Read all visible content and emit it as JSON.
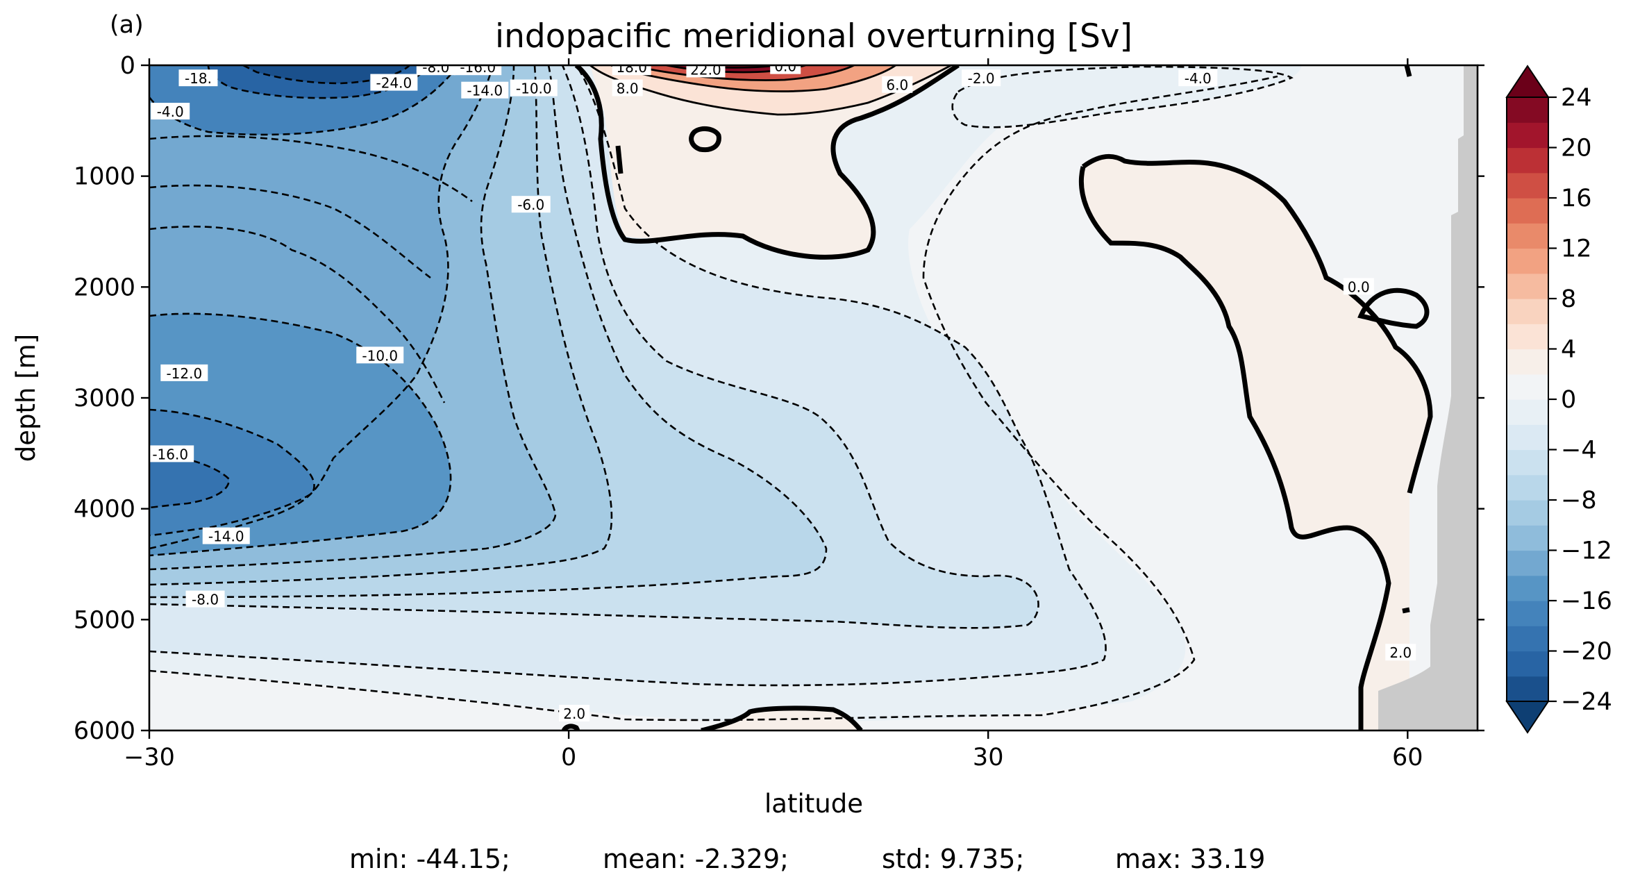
{
  "panel_label": "(a)",
  "chart_data": {
    "type": "contour",
    "title": "indopacific meridional overturning [Sv]",
    "xlabel": "latitude",
    "ylabel": "depth [m]",
    "xlim": [
      -30,
      65
    ],
    "ylim": [
      6000,
      0
    ],
    "xticks": [
      -30,
      0,
      30,
      60
    ],
    "yticks": [
      0,
      1000,
      2000,
      3000,
      4000,
      5000,
      6000
    ],
    "x_tick_labels": [
      "−30",
      "0",
      "30",
      "60"
    ],
    "y_tick_labels": [
      "0",
      "1000",
      "2000",
      "3000",
      "4000",
      "5000",
      "6000"
    ],
    "colorbar": {
      "min": -24,
      "max": 24,
      "step": 2,
      "ticks": [
        24,
        20,
        16,
        12,
        8,
        4,
        0,
        -4,
        -8,
        -12,
        -16,
        -20,
        -24
      ],
      "tick_labels": [
        "24",
        "20",
        "16",
        "12",
        "8",
        "4",
        "0",
        "−4",
        "−8",
        "−12",
        "−16",
        "−20",
        "−24"
      ],
      "extend": "both",
      "colors": [
        "#0e3f73",
        "#1a508c",
        "#2864a4",
        "#3573b0",
        "#4483bb",
        "#5795c5",
        "#73a8d0",
        "#8fbcdb",
        "#a5cbe3",
        "#b9d7ea",
        "#cbe1ef",
        "#dbe9f3",
        "#e8f0f5",
        "#f2f4f6",
        "#f7efe9",
        "#fbe3d6",
        "#f9d3bf",
        "#f6bba0",
        "#f2a282",
        "#e98a6a",
        "#de6d54",
        "#cf4f44",
        "#bc3035",
        "#a2152c",
        "#840a23",
        "#6b0019"
      ]
    },
    "contour_labels": [
      {
        "lat": -26.5,
        "depth": 120,
        "text": "-18."
      },
      {
        "lat": -9.5,
        "depth": 20,
        "text": "-8.0"
      },
      {
        "lat": -6.5,
        "depth": 20,
        "text": "-16.0"
      },
      {
        "lat": -12.5,
        "depth": 160,
        "text": "-24.0"
      },
      {
        "lat": -6.0,
        "depth": 230,
        "text": "-14.0"
      },
      {
        "lat": -28.5,
        "depth": 420,
        "text": "-4.0"
      },
      {
        "lat": -2.5,
        "depth": 210,
        "text": "-10.0"
      },
      {
        "lat": -2.7,
        "depth": 1260,
        "text": "-6.0"
      },
      {
        "lat": -13.5,
        "depth": 2620,
        "text": "-10.0"
      },
      {
        "lat": -27.5,
        "depth": 2780,
        "text": "-12.0"
      },
      {
        "lat": -28.5,
        "depth": 3510,
        "text": "-16.0"
      },
      {
        "lat": -24.5,
        "depth": 4250,
        "text": "-14.0"
      },
      {
        "lat": -26.0,
        "depth": 4820,
        "text": "-8.0"
      },
      {
        "lat": 4.5,
        "depth": 20,
        "text": "18.0"
      },
      {
        "lat": 9.8,
        "depth": 40,
        "text": "22.0"
      },
      {
        "lat": 4.2,
        "depth": 210,
        "text": "8.0"
      },
      {
        "lat": 15.5,
        "depth": 10,
        "text": "0.0"
      },
      {
        "lat": 23.5,
        "depth": 180,
        "text": "6.0"
      },
      {
        "lat": 29.5,
        "depth": 120,
        "text": "-2.0"
      },
      {
        "lat": 45.0,
        "depth": 120,
        "text": "-4.0"
      },
      {
        "lat": 56.5,
        "depth": 2000,
        "text": "0.0"
      },
      {
        "lat": 59.5,
        "depth": 5300,
        "text": "2.0"
      },
      {
        "lat": 0.4,
        "depth": 5850,
        "text": "2.0"
      }
    ],
    "stats": {
      "min": "min: -44.15;",
      "mean": "mean: -2.329;",
      "std": "std: 9.735;",
      "max": "max: 33.19"
    }
  }
}
